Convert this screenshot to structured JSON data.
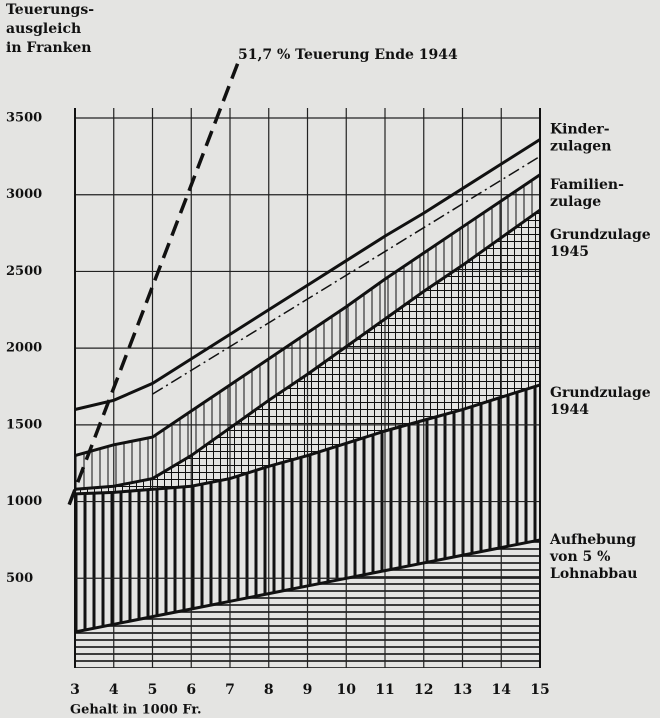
{
  "chart_data": {
    "type": "line",
    "ylabel": "Teuerungs-\nausgleich\nin Franken",
    "xlabel": "Gehalt in 1000 Fr.",
    "annotation": "51,7 % Teuerung Ende 1944",
    "x": [
      3,
      4,
      5,
      6,
      7,
      8,
      9,
      10,
      11,
      12,
      13,
      14,
      15
    ],
    "xlim": [
      3,
      15
    ],
    "xticks": [
      3,
      4,
      5,
      6,
      7,
      8,
      9,
      10,
      11,
      12,
      13,
      14,
      15
    ],
    "ylim": [
      0,
      3500
    ],
    "yticks": [
      500,
      1000,
      1500,
      2000,
      2500,
      3000,
      3500
    ],
    "grid": true,
    "series": [
      {
        "name": "Kinder-\nzulagen",
        "color": "#111111",
        "values": [
          1600,
          1660,
          1770,
          1930,
          2090,
          2250,
          2410,
          2570,
          2730,
          2880,
          3040,
          3200,
          3360
        ]
      },
      {
        "name": "Familien-\nzulage",
        "color": "#111111",
        "values": [
          1300,
          1370,
          1420,
          1590,
          1760,
          1930,
          2100,
          2270,
          2450,
          2620,
          2790,
          2960,
          3130
        ]
      },
      {
        "name": "Grundzulage\n1945",
        "color": "#111111",
        "values": [
          1080,
          1100,
          1150,
          1300,
          1480,
          1660,
          1830,
          2010,
          2190,
          2370,
          2540,
          2720,
          2900
        ]
      },
      {
        "name": "Grundzulage\n1944",
        "color": "#111111",
        "values": [
          1050,
          1060,
          1080,
          1100,
          1150,
          1230,
          1300,
          1380,
          1460,
          1530,
          1600,
          1680,
          1760
        ]
      },
      {
        "name": "Aufhebung\nvon 5 %\nLohnabbau",
        "color": "#111111",
        "values": [
          150,
          200,
          250,
          300,
          350,
          400,
          450,
          500,
          550,
          600,
          650,
          700,
          750
        ]
      },
      {
        "color": "#111111",
        "style": "dashdot",
        "values": [
          null,
          null,
          1700,
          1855,
          2010,
          2165,
          2320,
          2475,
          2630,
          2785,
          2940,
          3095,
          3250
        ]
      },
      {
        "color": "#111111",
        "style": "dashed",
        "x": [
          2.85,
          7.25
        ],
        "values": [
          980,
          3890
        ]
      }
    ]
  }
}
